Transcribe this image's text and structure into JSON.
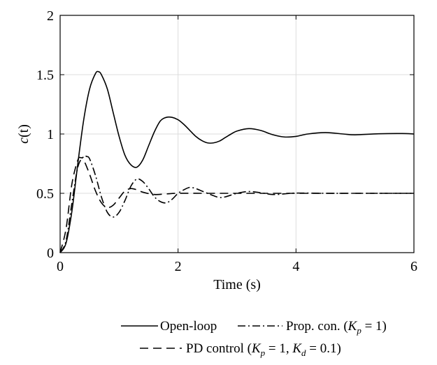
{
  "chart_data": {
    "type": "line",
    "title": "",
    "xlabel": "Time (s)",
    "ylabel_var": "c",
    "ylabel_arg": "(t)",
    "xlim": [
      0,
      6
    ],
    "ylim": [
      0,
      2
    ],
    "xticks": [
      0,
      2,
      4,
      6
    ],
    "yticks": [
      0,
      0.5,
      1,
      1.5,
      2
    ],
    "xtick_labels": [
      "0",
      "2",
      "4",
      "6"
    ],
    "ytick_labels": [
      "0",
      "0.5",
      "1",
      "1.5",
      "2"
    ],
    "grid": true,
    "legend_position": "bottom",
    "series": [
      {
        "name": "Open-loop",
        "style": "solid",
        "x": [
          0,
          0.1,
          0.2,
          0.3,
          0.4,
          0.5,
          0.6,
          0.65,
          0.7,
          0.8,
          0.9,
          1.0,
          1.1,
          1.2,
          1.3,
          1.4,
          1.5,
          1.6,
          1.7,
          1.8,
          1.9,
          2.0,
          2.1,
          2.2,
          2.3,
          2.4,
          2.5,
          2.6,
          2.7,
          2.8,
          2.9,
          3.0,
          3.2,
          3.4,
          3.6,
          3.8,
          4.0,
          4.2,
          4.5,
          4.8,
          5.0,
          5.4,
          5.8,
          6.0
        ],
        "y": [
          0,
          0.08,
          0.35,
          0.75,
          1.12,
          1.38,
          1.51,
          1.525,
          1.5,
          1.38,
          1.18,
          0.98,
          0.82,
          0.74,
          0.72,
          0.78,
          0.9,
          1.02,
          1.11,
          1.14,
          1.14,
          1.12,
          1.08,
          1.03,
          0.98,
          0.945,
          0.925,
          0.925,
          0.94,
          0.97,
          1.0,
          1.025,
          1.045,
          1.03,
          0.995,
          0.975,
          0.98,
          1.0,
          1.012,
          1.0,
          0.993,
          1.002,
          1.004,
          1.0
        ]
      },
      {
        "name": "Prop. con. (Kp = 1)",
        "style": "dashdot",
        "x": [
          0,
          0.1,
          0.2,
          0.3,
          0.4,
          0.45,
          0.5,
          0.6,
          0.7,
          0.8,
          0.9,
          1.0,
          1.1,
          1.2,
          1.3,
          1.4,
          1.5,
          1.6,
          1.7,
          1.8,
          1.9,
          2.0,
          2.1,
          2.2,
          2.3,
          2.4,
          2.5,
          2.6,
          2.7,
          2.8,
          3.0,
          3.2,
          3.4,
          3.6,
          3.8,
          4.0,
          4.5,
          5.0,
          5.5,
          6.0
        ],
        "y": [
          0,
          0.1,
          0.42,
          0.72,
          0.81,
          0.81,
          0.79,
          0.65,
          0.47,
          0.34,
          0.3,
          0.34,
          0.44,
          0.56,
          0.62,
          0.6,
          0.54,
          0.47,
          0.43,
          0.42,
          0.45,
          0.5,
          0.53,
          0.55,
          0.54,
          0.52,
          0.5,
          0.48,
          0.465,
          0.47,
          0.5,
          0.515,
          0.505,
          0.49,
          0.495,
          0.502,
          0.5,
          0.5,
          0.5,
          0.5
        ]
      },
      {
        "name": "PD control (Kp = 1, Kd = 0.1)",
        "style": "dashed",
        "x": [
          0,
          0.1,
          0.2,
          0.3,
          0.35,
          0.4,
          0.5,
          0.6,
          0.7,
          0.8,
          0.9,
          1.0,
          1.1,
          1.2,
          1.3,
          1.4,
          1.6,
          1.8,
          2.0,
          2.5,
          3.0,
          4.0,
          5.0,
          6.0
        ],
        "y": [
          0,
          0.2,
          0.58,
          0.78,
          0.8,
          0.78,
          0.66,
          0.52,
          0.42,
          0.38,
          0.4,
          0.46,
          0.52,
          0.54,
          0.53,
          0.51,
          0.49,
          0.495,
          0.5,
          0.5,
          0.5,
          0.5,
          0.5,
          0.5
        ]
      }
    ],
    "legend": {
      "row1": [
        {
          "style": "solid",
          "text": "Open-loop"
        },
        {
          "style": "dashdot",
          "prefix": "Prop. con. (",
          "sym": "K",
          "sub": "p",
          "suffix": " = 1)"
        }
      ],
      "row2": [
        {
          "style": "dashed",
          "prefix": "PD control (",
          "sym": "K",
          "sub": "p",
          "mid": " = 1, ",
          "sym2": "K",
          "sub2": "d",
          "suffix": " = 0.1)"
        }
      ]
    }
  }
}
